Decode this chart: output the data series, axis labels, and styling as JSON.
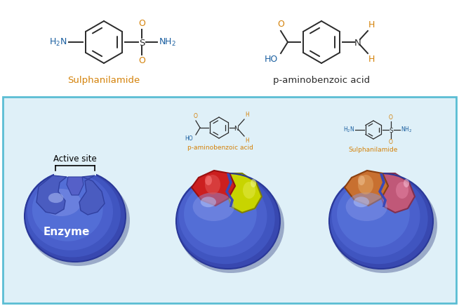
{
  "bg_color": "#ffffff",
  "panel_bg": "#dff0f8",
  "panel_border": "#5bbdd4",
  "text_color_orange": "#d4820a",
  "text_color_blue": "#1a5fa0",
  "text_color_black": "#222222",
  "bond_color": "#2a2a2a",
  "enzyme_color_main": "#4a5cc0",
  "enzyme_color_mid": "#5a6fd0",
  "enzyme_color_light": "#7888e0",
  "enzyme_color_dark": "#2a3898",
  "enzyme_shadow": "#3a4aaa",
  "substrate_red": "#cc1f1f",
  "substrate_red_light": "#e05050",
  "substrate_yellow": "#c8d400",
  "substrate_yellow_light": "#e0e840",
  "substrate_orange": "#c87030",
  "substrate_orange_light": "#dfa060",
  "substrate_pink": "#c05878",
  "substrate_pink_light": "#e080a0",
  "active_site_label": "Active site",
  "enzyme_label": "Enzyme",
  "sulph_name": "Sulphanilamide",
  "paba_name": "p-aminobenzoic acid",
  "sulph_label_small": "Sulphanilamide",
  "paba_label_small": "p-aminobenzoic acid",
  "fig_width": 6.54,
  "fig_height": 4.36
}
